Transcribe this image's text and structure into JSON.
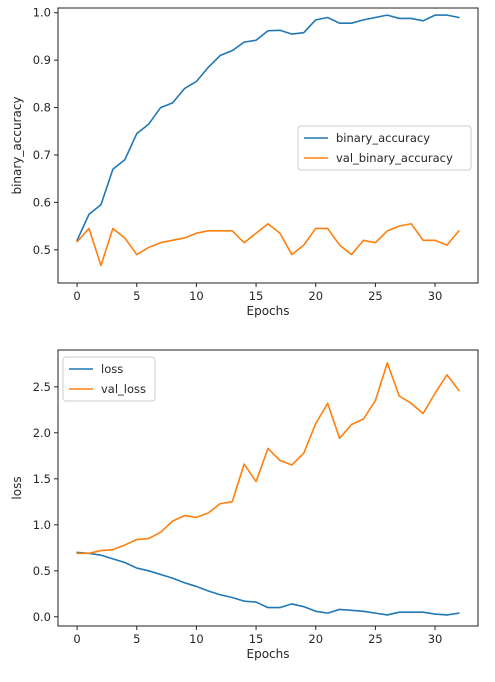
{
  "chart_data": [
    {
      "type": "line",
      "xlabel": "Epochs",
      "ylabel": "binary_accuracy",
      "xlim": [
        -1.6,
        33.6
      ],
      "ylim": [
        0.43,
        1.01
      ],
      "xticks": [
        0,
        5,
        10,
        15,
        20,
        25,
        30
      ],
      "yticks": [
        0.5,
        0.6,
        0.7,
        0.8,
        0.9,
        1.0
      ],
      "ytick_format": 1,
      "legend": "center-right",
      "x": [
        0,
        1,
        2,
        3,
        4,
        5,
        6,
        7,
        8,
        9,
        10,
        11,
        12,
        13,
        14,
        15,
        16,
        17,
        18,
        19,
        20,
        21,
        22,
        23,
        24,
        25,
        26,
        27,
        28,
        29,
        30,
        31,
        32
      ],
      "series": [
        {
          "name": "binary_accuracy",
          "color": "#1f77b4",
          "values": [
            0.52,
            0.575,
            0.595,
            0.67,
            0.69,
            0.745,
            0.765,
            0.8,
            0.81,
            0.84,
            0.855,
            0.885,
            0.91,
            0.92,
            0.938,
            0.942,
            0.962,
            0.963,
            0.955,
            0.958,
            0.985,
            0.99,
            0.978,
            0.978,
            0.985,
            0.99,
            0.995,
            0.988,
            0.988,
            0.983,
            0.995,
            0.995,
            0.99
          ]
        },
        {
          "name": "val_binary_accuracy",
          "color": "#ff7f0e",
          "values": [
            0.517,
            0.545,
            0.467,
            0.545,
            0.525,
            0.49,
            0.505,
            0.515,
            0.52,
            0.525,
            0.535,
            0.54,
            0.54,
            0.54,
            0.515,
            0.535,
            0.555,
            0.535,
            0.49,
            0.51,
            0.545,
            0.545,
            0.51,
            0.49,
            0.52,
            0.515,
            0.54,
            0.55,
            0.555,
            0.52,
            0.52,
            0.51,
            0.54
          ]
        }
      ]
    },
    {
      "type": "line",
      "xlabel": "Epochs",
      "ylabel": "loss",
      "xlim": [
        -1.6,
        33.6
      ],
      "ylim": [
        -0.1,
        2.9
      ],
      "xticks": [
        0,
        5,
        10,
        15,
        20,
        25,
        30
      ],
      "yticks": [
        0.0,
        0.5,
        1.0,
        1.5,
        2.0,
        2.5
      ],
      "ytick_format": 1,
      "legend": "top-left",
      "x": [
        0,
        1,
        2,
        3,
        4,
        5,
        6,
        7,
        8,
        9,
        10,
        11,
        12,
        13,
        14,
        15,
        16,
        17,
        18,
        19,
        20,
        21,
        22,
        23,
        24,
        25,
        26,
        27,
        28,
        29,
        30,
        31,
        32
      ],
      "series": [
        {
          "name": "loss",
          "color": "#1f77b4",
          "values": [
            0.7,
            0.69,
            0.67,
            0.63,
            0.59,
            0.53,
            0.5,
            0.46,
            0.42,
            0.37,
            0.33,
            0.28,
            0.24,
            0.21,
            0.17,
            0.16,
            0.1,
            0.1,
            0.14,
            0.11,
            0.06,
            0.04,
            0.08,
            0.07,
            0.06,
            0.04,
            0.02,
            0.05,
            0.05,
            0.05,
            0.03,
            0.02,
            0.04
          ]
        },
        {
          "name": "val_loss",
          "color": "#ff7f0e",
          "values": [
            0.69,
            0.69,
            0.72,
            0.73,
            0.78,
            0.84,
            0.85,
            0.92,
            1.04,
            1.1,
            1.08,
            1.13,
            1.23,
            1.25,
            1.66,
            1.47,
            1.83,
            1.7,
            1.65,
            1.78,
            2.1,
            2.32,
            1.94,
            2.09,
            2.15,
            2.35,
            2.76,
            2.4,
            2.32,
            2.21,
            2.43,
            2.63,
            2.46
          ]
        }
      ]
    }
  ]
}
